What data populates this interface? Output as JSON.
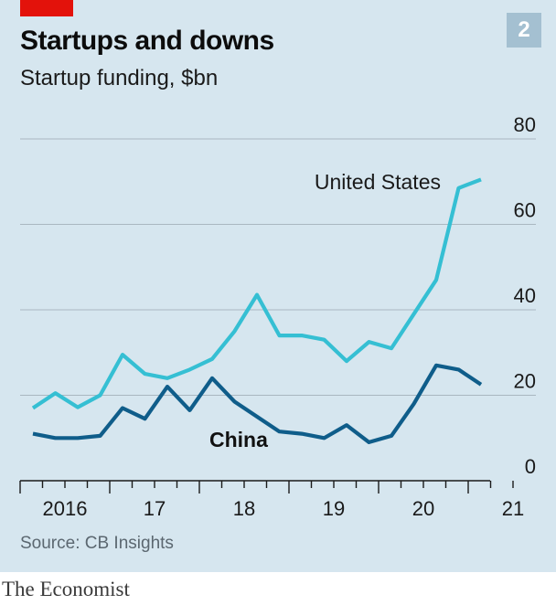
{
  "header": {
    "chart_number": "2",
    "title": "Startups and downs",
    "subtitle": "Startup funding, $bn"
  },
  "footer": {
    "source": "Source: CB Insights",
    "brand": "The Economist"
  },
  "colors": {
    "background": "#d6e6ef",
    "red_tag": "#e3120b",
    "united_states": "#35bfd3",
    "china": "#0f5d8a",
    "gridline": "#a9b7c0",
    "axis": "#1a1a1a"
  },
  "chart_data": {
    "type": "line",
    "title": "Startups and downs",
    "subtitle": "Startup funding, $bn",
    "xlabel": "",
    "ylabel": "",
    "ylim": [
      0,
      80
    ],
    "y_ticks": [
      0,
      20,
      40,
      60,
      80
    ],
    "y_axis_side": "right",
    "grid": true,
    "x_quarters": [
      "2016 Q1",
      "2016 Q2",
      "2016 Q3",
      "2016 Q4",
      "2017 Q1",
      "2017 Q2",
      "2017 Q3",
      "2017 Q4",
      "2018 Q1",
      "2018 Q2",
      "2018 Q3",
      "2018 Q4",
      "2019 Q1",
      "2019 Q2",
      "2019 Q3",
      "2019 Q4",
      "2020 Q1",
      "2020 Q2",
      "2020 Q3",
      "2020 Q4",
      "2021 Q1",
      "2021 Q2"
    ],
    "x_tick_labels": [
      {
        "label": "2016",
        "year_index": 0
      },
      {
        "label": "17",
        "year_index": 1
      },
      {
        "label": "18",
        "year_index": 2
      },
      {
        "label": "19",
        "year_index": 3
      },
      {
        "label": "20",
        "year_index": 4
      },
      {
        "label": "21",
        "year_index": 5
      }
    ],
    "series": [
      {
        "name": "United States",
        "values": [
          17,
          20.5,
          17.2,
          20,
          29.5,
          25,
          24,
          26,
          28.5,
          35,
          43.5,
          34,
          34,
          33,
          28,
          32.5,
          31,
          39,
          47,
          68.5,
          70.5,
          null
        ]
      },
      {
        "name": "China",
        "values": [
          11,
          10,
          10,
          10.5,
          17,
          14.5,
          22,
          16.5,
          24,
          18.5,
          15,
          11.5,
          11,
          10,
          13,
          9,
          10.5,
          18,
          27,
          26,
          22.5,
          null
        ]
      }
    ],
    "annotations": [
      {
        "text": "United States",
        "series": "United States"
      },
      {
        "text": "China",
        "series": "China"
      }
    ]
  }
}
